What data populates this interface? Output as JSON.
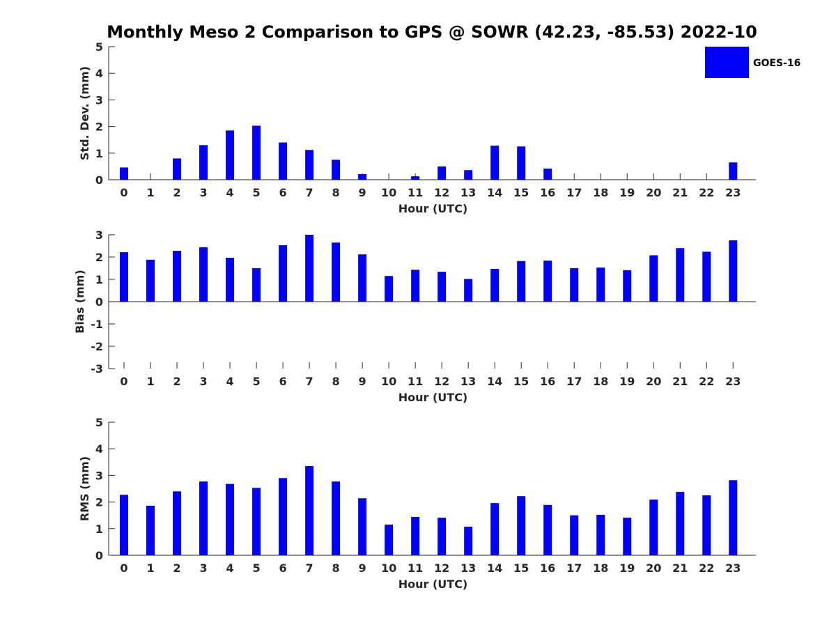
{
  "title": "Monthly Meso 2 Comparison to GPS @ SOWR (42.23, -85.53) 2022-10",
  "legend": {
    "label": "GOES-16",
    "color": "#0000ff"
  },
  "chart_data": [
    {
      "type": "bar",
      "xlabel": "Hour (UTC)",
      "ylabel": "Std. Dev. (mm)",
      "ylim": [
        0,
        5
      ],
      "yticks": [
        "0",
        "1",
        "2",
        "3",
        "4",
        "5"
      ],
      "categories": [
        "0",
        "1",
        "2",
        "3",
        "4",
        "5",
        "6",
        "7",
        "8",
        "9",
        "10",
        "11",
        "12",
        "13",
        "14",
        "15",
        "16",
        "17",
        "18",
        "19",
        "20",
        "21",
        "22",
        "23"
      ],
      "series": [
        {
          "name": "GOES-16",
          "color": "#0000ff",
          "values": [
            0.46,
            0,
            0.8,
            1.3,
            1.85,
            2.03,
            1.4,
            1.12,
            0.75,
            0.21,
            0,
            0.13,
            0.5,
            0.36,
            1.28,
            1.25,
            0.42,
            0,
            0,
            0,
            0,
            0,
            0,
            0.65
          ]
        }
      ]
    },
    {
      "type": "bar",
      "xlabel": "Hour (UTC)",
      "ylabel": "Bias (mm)",
      "ylim": [
        -3,
        3
      ],
      "yticks": [
        "-3",
        "-2",
        "-1",
        "0",
        "1",
        "2",
        "3"
      ],
      "categories": [
        "0",
        "1",
        "2",
        "3",
        "4",
        "5",
        "6",
        "7",
        "8",
        "9",
        "10",
        "11",
        "12",
        "13",
        "14",
        "15",
        "16",
        "17",
        "18",
        "19",
        "20",
        "21",
        "22",
        "23"
      ],
      "series": [
        {
          "name": "GOES-16",
          "color": "#0000ff",
          "values": [
            2.22,
            1.88,
            2.28,
            2.44,
            1.97,
            1.5,
            2.53,
            3.0,
            2.65,
            2.12,
            1.15,
            1.43,
            1.34,
            1.02,
            1.47,
            1.82,
            1.84,
            1.5,
            1.53,
            1.41,
            2.08,
            2.4,
            2.24,
            2.75
          ]
        }
      ]
    },
    {
      "type": "bar",
      "xlabel": "Hour (UTC)",
      "ylabel": "RMS (mm)",
      "ylim": [
        0,
        5
      ],
      "yticks": [
        "0",
        "1",
        "2",
        "3",
        "4",
        "5"
      ],
      "categories": [
        "0",
        "1",
        "2",
        "3",
        "4",
        "5",
        "6",
        "7",
        "8",
        "9",
        "10",
        "11",
        "12",
        "13",
        "14",
        "15",
        "16",
        "17",
        "18",
        "19",
        "20",
        "21",
        "22",
        "23"
      ],
      "series": [
        {
          "name": "GOES-16",
          "color": "#0000ff",
          "values": [
            2.27,
            1.86,
            2.4,
            2.77,
            2.68,
            2.53,
            2.9,
            3.35,
            2.77,
            2.14,
            1.15,
            1.44,
            1.41,
            1.07,
            1.96,
            2.22,
            1.89,
            1.5,
            1.52,
            1.41,
            2.09,
            2.38,
            2.25,
            2.82
          ]
        }
      ]
    }
  ]
}
